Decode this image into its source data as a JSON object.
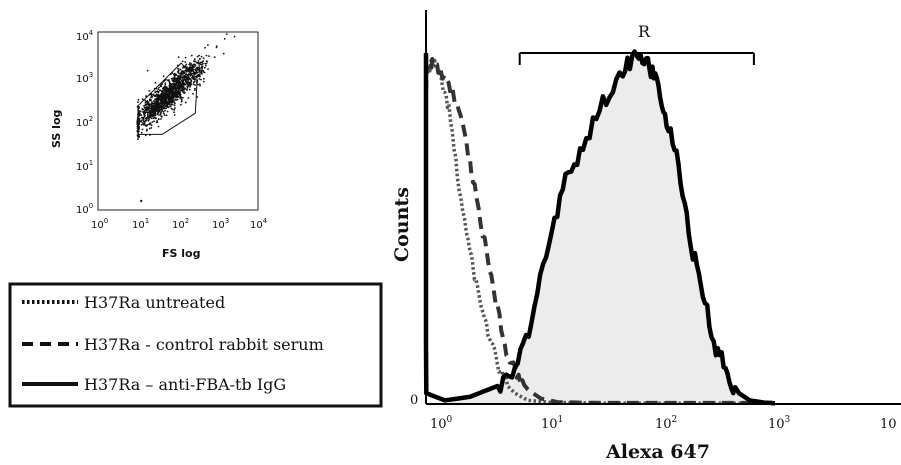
{
  "chart_data": [
    {
      "type": "scatter",
      "xlabel": "FS log",
      "ylabel": "SS log",
      "x_scale": "log",
      "y_scale": "log",
      "xlim": [
        1,
        10000
      ],
      "ylim": [
        1,
        10000
      ],
      "x_ticks": [
        {
          "base": "10",
          "exp": "0"
        },
        {
          "base": "10",
          "exp": "1"
        },
        {
          "base": "10",
          "exp": "2"
        },
        {
          "base": "10",
          "exp": "3"
        },
        {
          "base": "10",
          "exp": "4"
        }
      ],
      "y_ticks": [
        {
          "base": "10",
          "exp": "0"
        },
        {
          "base": "10",
          "exp": "1"
        },
        {
          "base": "10",
          "exp": "2"
        },
        {
          "base": "10",
          "exp": "3"
        },
        {
          "base": "10",
          "exp": "4"
        }
      ],
      "population": {
        "center_fs": 60,
        "center_ss": 400,
        "description_colors": {
          "dots": "#111111"
        }
      },
      "gate": {
        "fs_range": [
          10,
          300
        ],
        "ss_range": [
          50,
          2000
        ]
      },
      "outlier": {
        "fs": 12,
        "ss": 1.6
      }
    },
    {
      "type": "line",
      "xlabel": "Alexa 647",
      "ylabel": "Counts",
      "x_scale": "log",
      "xlim": [
        0.75,
        1000
      ],
      "x_ticks": [
        {
          "base": "10",
          "exp": "0"
        },
        {
          "base": "10",
          "exp": "1"
        },
        {
          "base": "10",
          "exp": "2"
        },
        {
          "base": "10",
          "exp": "3"
        },
        {
          "base": "10",
          "exp": ""
        }
      ],
      "y_tick": "0",
      "gate": {
        "label": "R",
        "range": [
          5.5,
          650
        ]
      },
      "series": [
        {
          "name": "H37Ra untreated",
          "style": "dotted",
          "color": "#555555",
          "points": [
            [
              0.75,
              0.3
            ],
            [
              0.82,
              0.92
            ],
            [
              0.95,
              0.95
            ],
            [
              1.1,
              0.9
            ],
            [
              1.3,
              0.82
            ],
            [
              1.6,
              0.6
            ],
            [
              2.0,
              0.42
            ],
            [
              2.4,
              0.3
            ],
            [
              3.0,
              0.18
            ],
            [
              3.6,
              0.1
            ],
            [
              4.3,
              0.05
            ],
            [
              5.0,
              0.03
            ],
            [
              6.5,
              0.01
            ],
            [
              10,
              0.005
            ],
            [
              30,
              0.002
            ],
            [
              100,
              0.002
            ],
            [
              1000,
              0.002
            ]
          ]
        },
        {
          "name": "H37Ra - control rabbit serum",
          "style": "dashed",
          "color": "#333333",
          "points": [
            [
              0.75,
              0.3
            ],
            [
              0.82,
              0.93
            ],
            [
              0.95,
              0.95
            ],
            [
              1.1,
              0.92
            ],
            [
              1.4,
              0.87
            ],
            [
              1.8,
              0.75
            ],
            [
              2.2,
              0.6
            ],
            [
              2.8,
              0.42
            ],
            [
              3.4,
              0.28
            ],
            [
              4.2,
              0.15
            ],
            [
              5.2,
              0.08
            ],
            [
              6.5,
              0.04
            ],
            [
              8.5,
              0.015
            ],
            [
              12,
              0.005
            ],
            [
              30,
              0.003
            ],
            [
              100,
              0.003
            ],
            [
              1000,
              0.003
            ]
          ]
        },
        {
          "name": "H37Ra – anti-FBA-tb IgG",
          "style": "solid",
          "color": "#000000",
          "fill": "#eeeeee",
          "points": [
            [
              0.75,
              1.0
            ],
            [
              0.82,
              0.03
            ],
            [
              1.2,
              0.01
            ],
            [
              2.0,
              0.02
            ],
            [
              3.5,
              0.05
            ],
            [
              5.0,
              0.09
            ],
            [
              7.0,
              0.21
            ],
            [
              10,
              0.46
            ],
            [
              14,
              0.62
            ],
            [
              20,
              0.72
            ],
            [
              30,
              0.83
            ],
            [
              45,
              0.93
            ],
            [
              60,
              0.97
            ],
            [
              75,
              0.95
            ],
            [
              90,
              0.89
            ],
            [
              110,
              0.78
            ],
            [
              140,
              0.67
            ],
            [
              180,
              0.45
            ],
            [
              230,
              0.3
            ],
            [
              300,
              0.16
            ],
            [
              380,
              0.08
            ],
            [
              480,
              0.03
            ],
            [
              600,
              0.01
            ],
            [
              800,
              0.004
            ],
            [
              1000,
              0.002
            ]
          ]
        }
      ]
    }
  ],
  "legend": {
    "items": [
      {
        "label": "H37Ra untreated",
        "style": "dotted"
      },
      {
        "label": "H37Ra - control rabbit serum",
        "style": "dashed"
      },
      {
        "label": "H37Ra – anti-FBA-tb IgG",
        "style": "solid"
      }
    ]
  }
}
